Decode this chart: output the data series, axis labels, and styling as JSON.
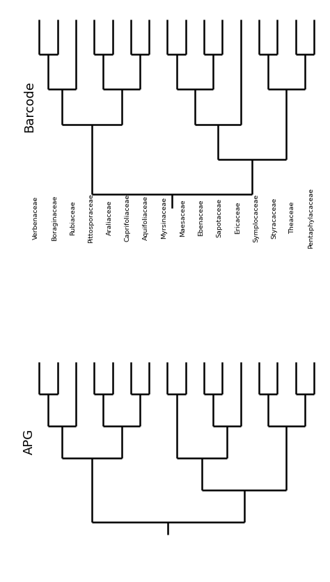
{
  "taxa": [
    "Verbenaceae",
    "Boraginaceae",
    "Rubiaceae",
    "Pittosporaceae",
    "Araliaceae",
    "Caprifoliaceae",
    "Aquifoliaceae",
    "Myrsinaceae",
    "Maesaceae",
    "Ebenaceae",
    "Sapotaceae",
    "Ericaceae",
    "Symplocaceae",
    "Styracaceae",
    "Theaceae",
    "Pentaphylacaceae"
  ],
  "lw": 1.8,
  "lc": "#000000",
  "bg": "#ffffff",
  "label_fs": 6.8,
  "section_fs": 13,
  "fig_w": 4.74,
  "fig_h": 8.36,
  "dpi": 100
}
